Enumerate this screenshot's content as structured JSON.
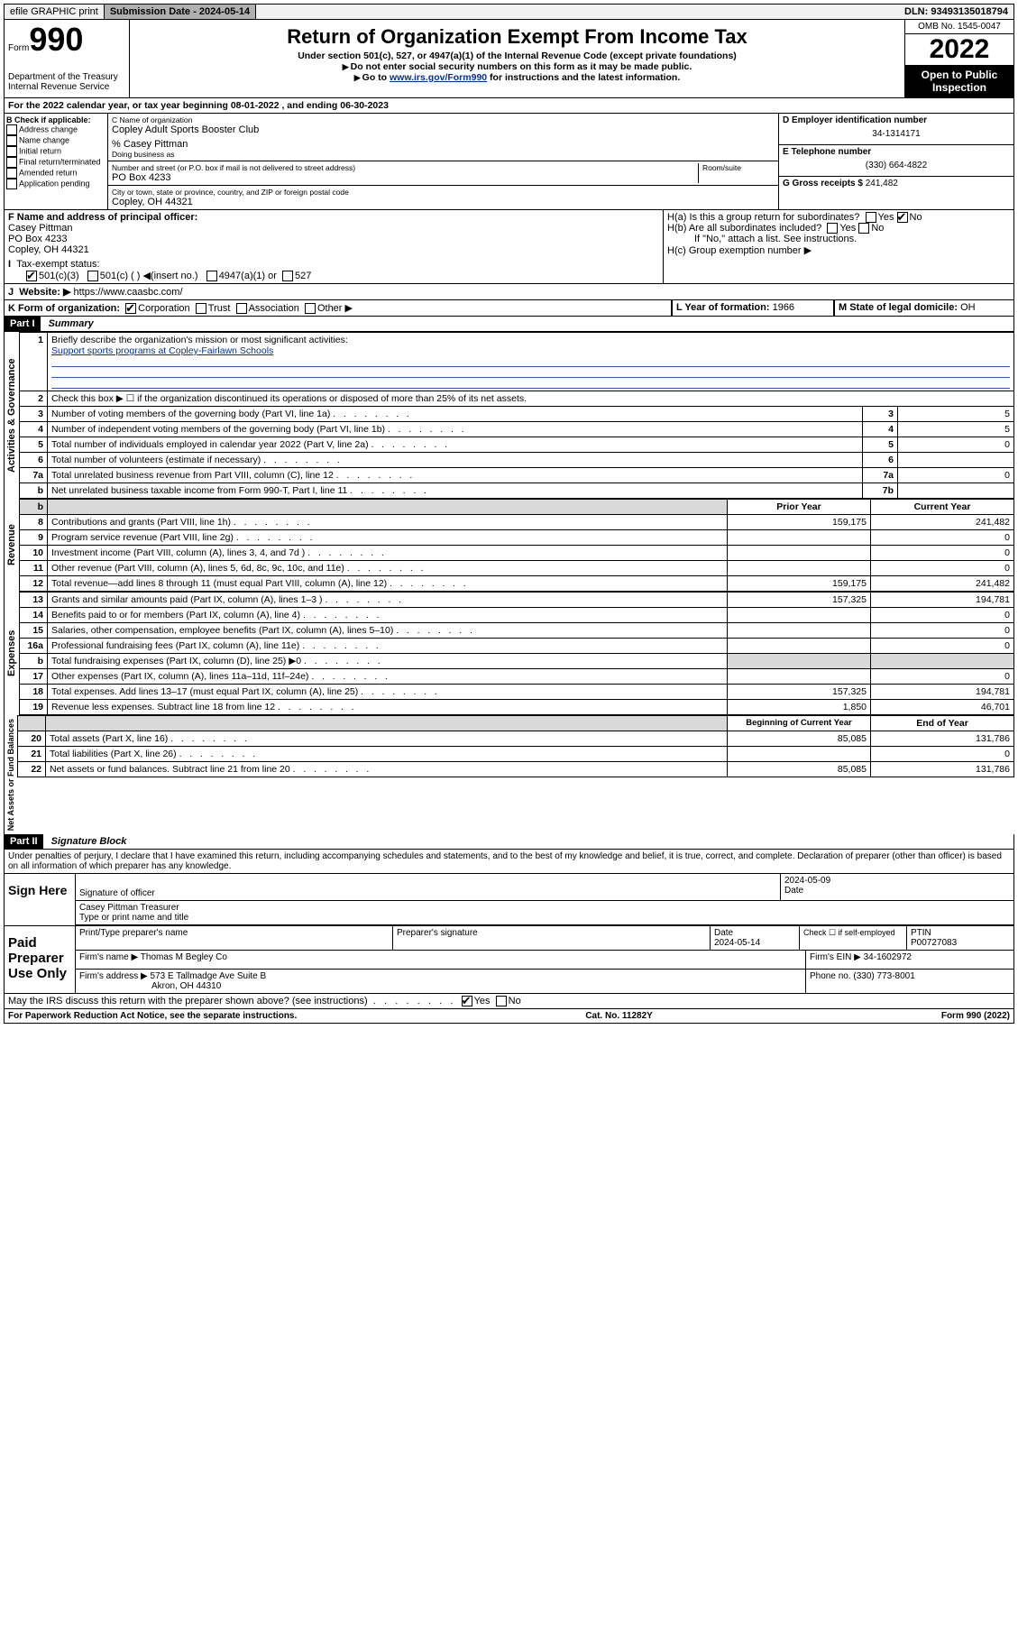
{
  "topbar": {
    "efile": "efile GRAPHIC print",
    "submission_label": "Submission Date - 2024-05-14",
    "dln": "DLN: 93493135018794"
  },
  "header": {
    "form_word": "Form",
    "form_num": "990",
    "title": "Return of Organization Exempt From Income Tax",
    "sub1": "Under section 501(c), 527, or 4947(a)(1) of the Internal Revenue Code (except private foundations)",
    "sub2": "Do not enter social security numbers on this form as it may be made public.",
    "sub3_pre": "Go to ",
    "sub3_link": "www.irs.gov/Form990",
    "sub3_post": " for instructions and the latest information.",
    "dept": "Department of the Treasury",
    "irs": "Internal Revenue Service",
    "omb": "OMB No. 1545-0047",
    "year": "2022",
    "public": "Open to Public Inspection"
  },
  "line_a": "For the 2022 calendar year, or tax year beginning 08-01-2022   , and ending 06-30-2023",
  "box_b": {
    "title": "B Check if applicable:",
    "items": [
      "Address change",
      "Name change",
      "Initial return",
      "Final return/terminated",
      "Amended return",
      "Application pending"
    ]
  },
  "box_c": {
    "label_name": "C Name of organization",
    "name": "Copley Adult Sports Booster Club",
    "care_of": "% Casey Pittman",
    "dba_label": "Doing business as",
    "addr_label": "Number and street (or P.O. box if mail is not delivered to street address)",
    "room_label": "Room/suite",
    "addr": "PO Box 4233",
    "city_label": "City or town, state or province, country, and ZIP or foreign postal code",
    "city": "Copley, OH  44321"
  },
  "box_d": {
    "label": "D Employer identification number",
    "value": "34-1314171"
  },
  "box_e": {
    "label": "E Telephone number",
    "value": "(330) 664-4822"
  },
  "box_g": {
    "label": "G Gross receipts $",
    "value": "241,482"
  },
  "box_f": {
    "label": "F Name and address of principal officer:",
    "name": "Casey Pittman",
    "addr": "PO Box 4233",
    "city": "Copley, OH  44321"
  },
  "box_h": {
    "ha": "H(a)  Is this a group return for subordinates?",
    "hb": "H(b)  Are all subordinates included?",
    "hnote": "If \"No,\" attach a list. See instructions.",
    "hc": "H(c)  Group exemption number ▶"
  },
  "box_i": {
    "label": "Tax-exempt status:",
    "opts": [
      "501(c)(3)",
      "501(c) (  ) ◀(insert no.)",
      "4947(a)(1) or",
      "527"
    ]
  },
  "box_j": {
    "label": "Website: ▶",
    "value": "https://www.caasbc.com/"
  },
  "box_k": {
    "label": "K Form of organization:",
    "opts": [
      "Corporation",
      "Trust",
      "Association",
      "Other ▶"
    ]
  },
  "box_l": {
    "label": "L Year of formation:",
    "value": "1966"
  },
  "box_m": {
    "label": "M State of legal domicile:",
    "value": "OH"
  },
  "part1": {
    "hdr": "Part I",
    "title": "Summary",
    "l1": "Briefly describe the organization's mission or most significant activities:",
    "l1v": "Support sports programs at Copley-Fairlawn Schools",
    "l2": "Check this box ▶ ☐  if the organization discontinued its operations or disposed of more than 25% of its net assets.",
    "rows_ag": [
      {
        "n": "3",
        "d": "Number of voting members of the governing body (Part VI, line 1a)",
        "box": "3",
        "v": "5"
      },
      {
        "n": "4",
        "d": "Number of independent voting members of the governing body (Part VI, line 1b)",
        "box": "4",
        "v": "5"
      },
      {
        "n": "5",
        "d": "Total number of individuals employed in calendar year 2022 (Part V, line 2a)",
        "box": "5",
        "v": "0"
      },
      {
        "n": "6",
        "d": "Total number of volunteers (estimate if necessary)",
        "box": "6",
        "v": ""
      },
      {
        "n": "7a",
        "d": "Total unrelated business revenue from Part VIII, column (C), line 12",
        "box": "7a",
        "v": "0"
      },
      {
        "n": "b",
        "d": "Net unrelated business taxable income from Form 990-T, Part I, line 11",
        "box": "7b",
        "v": ""
      }
    ],
    "col_prior": "Prior Year",
    "col_curr": "Current Year",
    "rev": [
      {
        "n": "8",
        "d": "Contributions and grants (Part VIII, line 1h)",
        "p": "159,175",
        "c": "241,482"
      },
      {
        "n": "9",
        "d": "Program service revenue (Part VIII, line 2g)",
        "p": "",
        "c": "0"
      },
      {
        "n": "10",
        "d": "Investment income (Part VIII, column (A), lines 3, 4, and 7d )",
        "p": "",
        "c": "0"
      },
      {
        "n": "11",
        "d": "Other revenue (Part VIII, column (A), lines 5, 6d, 8c, 9c, 10c, and 11e)",
        "p": "",
        "c": "0"
      },
      {
        "n": "12",
        "d": "Total revenue—add lines 8 through 11 (must equal Part VIII, column (A), line 12)",
        "p": "159,175",
        "c": "241,482"
      }
    ],
    "exp": [
      {
        "n": "13",
        "d": "Grants and similar amounts paid (Part IX, column (A), lines 1–3 )",
        "p": "157,325",
        "c": "194,781"
      },
      {
        "n": "14",
        "d": "Benefits paid to or for members (Part IX, column (A), line 4)",
        "p": "",
        "c": "0"
      },
      {
        "n": "15",
        "d": "Salaries, other compensation, employee benefits (Part IX, column (A), lines 5–10)",
        "p": "",
        "c": "0"
      },
      {
        "n": "16a",
        "d": "Professional fundraising fees (Part IX, column (A), line 11e)",
        "p": "",
        "c": "0"
      },
      {
        "n": "b",
        "d": "Total fundraising expenses (Part IX, column (D), line 25) ▶0",
        "p": "shade",
        "c": "shade"
      },
      {
        "n": "17",
        "d": "Other expenses (Part IX, column (A), lines 11a–11d, 11f–24e)",
        "p": "",
        "c": "0"
      },
      {
        "n": "18",
        "d": "Total expenses. Add lines 13–17 (must equal Part IX, column (A), line 25)",
        "p": "157,325",
        "c": "194,781"
      },
      {
        "n": "19",
        "d": "Revenue less expenses. Subtract line 18 from line 12",
        "p": "1,850",
        "c": "46,701"
      }
    ],
    "col_begin": "Beginning of Current Year",
    "col_end": "End of Year",
    "net": [
      {
        "n": "20",
        "d": "Total assets (Part X, line 16)",
        "p": "85,085",
        "c": "131,786"
      },
      {
        "n": "21",
        "d": "Total liabilities (Part X, line 26)",
        "p": "",
        "c": "0"
      },
      {
        "n": "22",
        "d": "Net assets or fund balances. Subtract line 21 from line 20",
        "p": "85,085",
        "c": "131,786"
      }
    ]
  },
  "part2": {
    "hdr": "Part II",
    "title": "Signature Block",
    "decl": "Under penalties of perjury, I declare that I have examined this return, including accompanying schedules and statements, and to the best of my knowledge and belief, it is true, correct, and complete. Declaration of preparer (other than officer) is based on all information of which preparer has any knowledge.",
    "sign_here": "Sign Here",
    "sig_officer": "Signature of officer",
    "sig_date_label": "Date",
    "sig_date": "2024-05-09",
    "officer_name": "Casey Pittman Treasurer",
    "type_name": "Type or print name and title",
    "paid": "Paid Preparer Use Only",
    "prep_name_label": "Print/Type preparer's name",
    "prep_sig_label": "Preparer's signature",
    "prep_date_label": "Date",
    "prep_date": "2024-05-14",
    "check_label": "Check ☐ if self-employed",
    "ptin_label": "PTIN",
    "ptin": "P00727083",
    "firm_name_label": "Firm's name    ▶",
    "firm_name": "Thomas M Begley Co",
    "firm_ein_label": "Firm's EIN ▶",
    "firm_ein": "34-1602972",
    "firm_addr_label": "Firm's address ▶",
    "firm_addr1": "573 E Tallmadge Ave Suite B",
    "firm_addr2": "Akron, OH  44310",
    "phone_label": "Phone no.",
    "phone": "(330) 773-8001",
    "discuss": "May the IRS discuss this return with the preparer shown above? (see instructions)",
    "yes": "Yes",
    "no": "No"
  },
  "footer": {
    "left": "For Paperwork Reduction Act Notice, see the separate instructions.",
    "mid": "Cat. No. 11282Y",
    "right": "Form 990 (2022)"
  },
  "vlabels": {
    "ag": "Activities & Governance",
    "rev": "Revenue",
    "exp": "Expenses",
    "net": "Net Assets or Fund Balances"
  }
}
